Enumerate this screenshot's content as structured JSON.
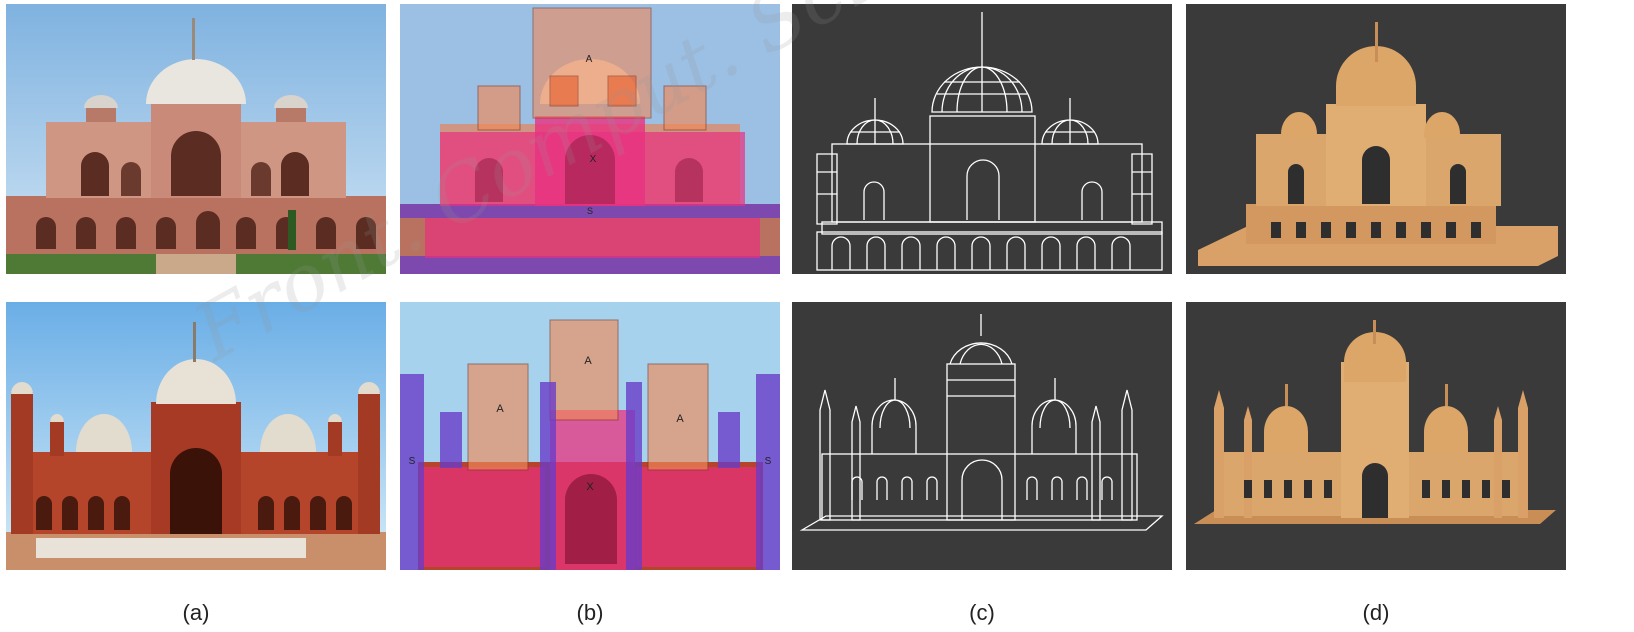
{
  "captions": {
    "a": "(a)",
    "b": "(b)",
    "c": "(c)",
    "d": "(d)"
  },
  "watermark": "Front. Comput. Sci. Technol. Eng",
  "labels": {
    "dome": "A",
    "tower": "S",
    "wall": "X"
  },
  "colors": {
    "sky_top": "#7fb2e0",
    "sky_bottom": "#cfe4f4",
    "sandstone": "#c98a7a",
    "marble": "#e9e6df",
    "brick": "#b4442a",
    "dark_bg": "#3a3a3a",
    "wire": "#ffffff",
    "solid": "#d9a168",
    "overlay_dome": "#f08a5a",
    "overlay_wall": "#e8317f",
    "overlay_tower": "#6a3cc8"
  }
}
